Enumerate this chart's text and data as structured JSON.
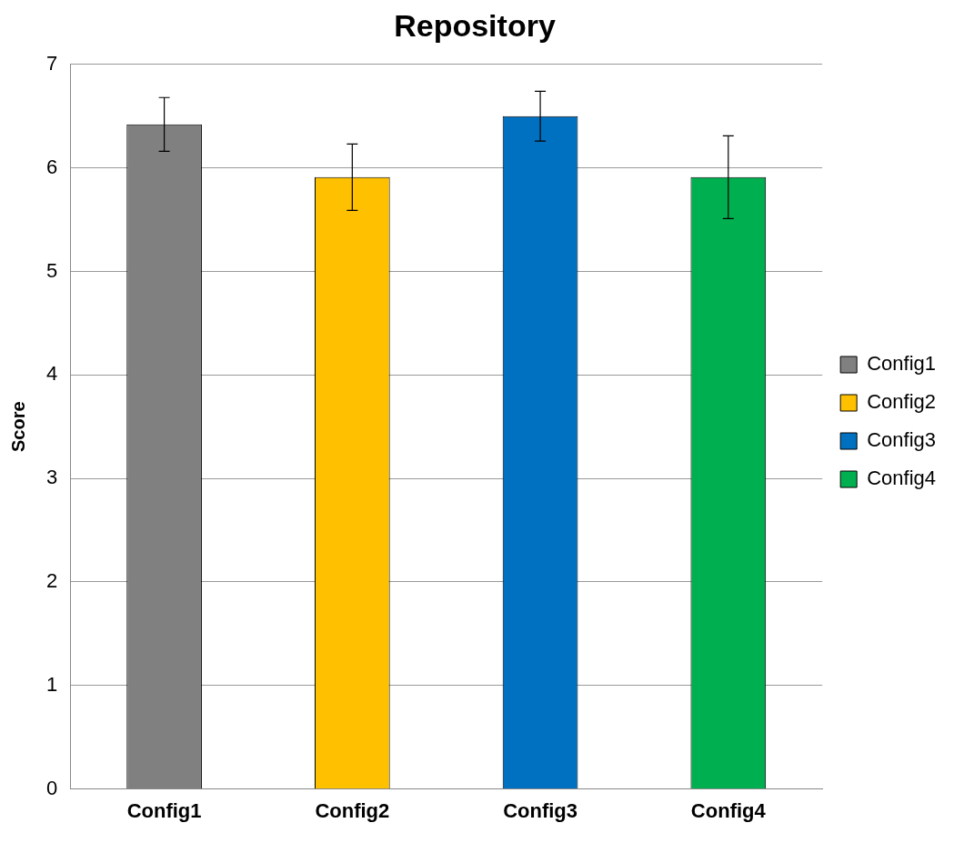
{
  "chart_data": {
    "type": "bar",
    "title": "Repository",
    "ylabel": "Score",
    "categories": [
      "Config1",
      "Config2",
      "Config3",
      "Config4"
    ],
    "series": [
      {
        "name": "Config1",
        "color": "#808080",
        "values": [
          6.42,
          null,
          null,
          null
        ],
        "errors": [
          0.26,
          null,
          null,
          null
        ]
      },
      {
        "name": "Config2",
        "color": "#ffc000",
        "values": [
          null,
          5.91,
          null,
          null
        ],
        "errors": [
          null,
          0.32,
          null,
          null
        ]
      },
      {
        "name": "Config3",
        "color": "#0070c0",
        "values": [
          null,
          null,
          6.5,
          null
        ],
        "errors": [
          null,
          null,
          0.24,
          null
        ]
      },
      {
        "name": "Config4",
        "color": "#00b050",
        "values": [
          null,
          null,
          null,
          5.91
        ],
        "errors": [
          null,
          null,
          null,
          0.4
        ]
      }
    ],
    "ylim": [
      0,
      7
    ],
    "yticks": [
      0,
      1,
      2,
      3,
      4,
      5,
      6,
      7
    ],
    "grid": "y",
    "legend": "right"
  }
}
